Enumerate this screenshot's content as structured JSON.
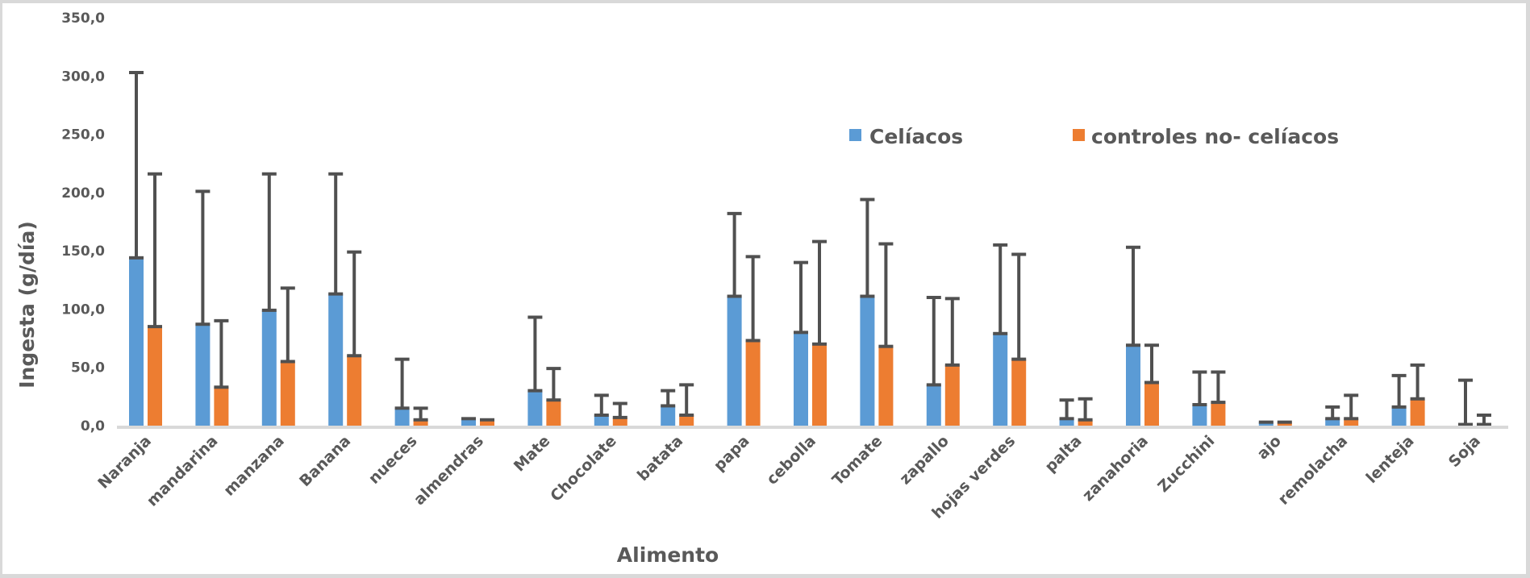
{
  "chart_data": {
    "type": "bar",
    "title": "",
    "xlabel": "Alimento",
    "ylabel": "Ingesta (g/día)",
    "ylim": [
      0,
      350
    ],
    "yticks": [
      0,
      50,
      100,
      150,
      200,
      250,
      300,
      350
    ],
    "ytick_labels": [
      "0,0",
      "50,0",
      "100,0",
      "150,0",
      "200,0",
      "250,0",
      "300,0",
      "350,0"
    ],
    "grid": false,
    "legend_position": "top-right",
    "categories": [
      "Naranja",
      "mandarina",
      "manzana",
      "Banana",
      "nueces",
      "almendras",
      "Mate",
      "Chocolate",
      "batata",
      "papa",
      "cebolla",
      "Tomate",
      "zapallo",
      "hojas verdes",
      "palta",
      "zanahoria",
      "Zucchini",
      "ajo",
      "remolacha",
      "lenteja",
      "Soja"
    ],
    "series": [
      {
        "name": "Celíacos",
        "color": "#5b9bd5",
        "values": [
          144,
          87,
          99,
          113,
          15,
          6,
          30,
          9,
          17,
          111,
          80,
          111,
          35,
          79,
          6,
          69,
          18,
          3,
          6,
          16,
          1
        ],
        "error_upper": [
          303,
          201,
          216,
          216,
          57,
          6,
          93,
          26,
          30,
          182,
          140,
          194,
          110,
          155,
          22,
          153,
          46,
          3,
          16,
          43,
          39
        ]
      },
      {
        "name": "controles no- celíacos",
        "color": "#ed7d31",
        "values": [
          85,
          33,
          55,
          60,
          5,
          5,
          22,
          7,
          9,
          73,
          70,
          68,
          52,
          57,
          5,
          37,
          20,
          3,
          6,
          23,
          1
        ],
        "error_upper": [
          216,
          90,
          118,
          149,
          15,
          5,
          49,
          19,
          35,
          145,
          158,
          156,
          109,
          147,
          23,
          69,
          46,
          3,
          26,
          52,
          9
        ]
      }
    ]
  },
  "colors": {
    "error_bar": "#505050",
    "axis_line": "#d9d9d9",
    "text": "#595959"
  }
}
